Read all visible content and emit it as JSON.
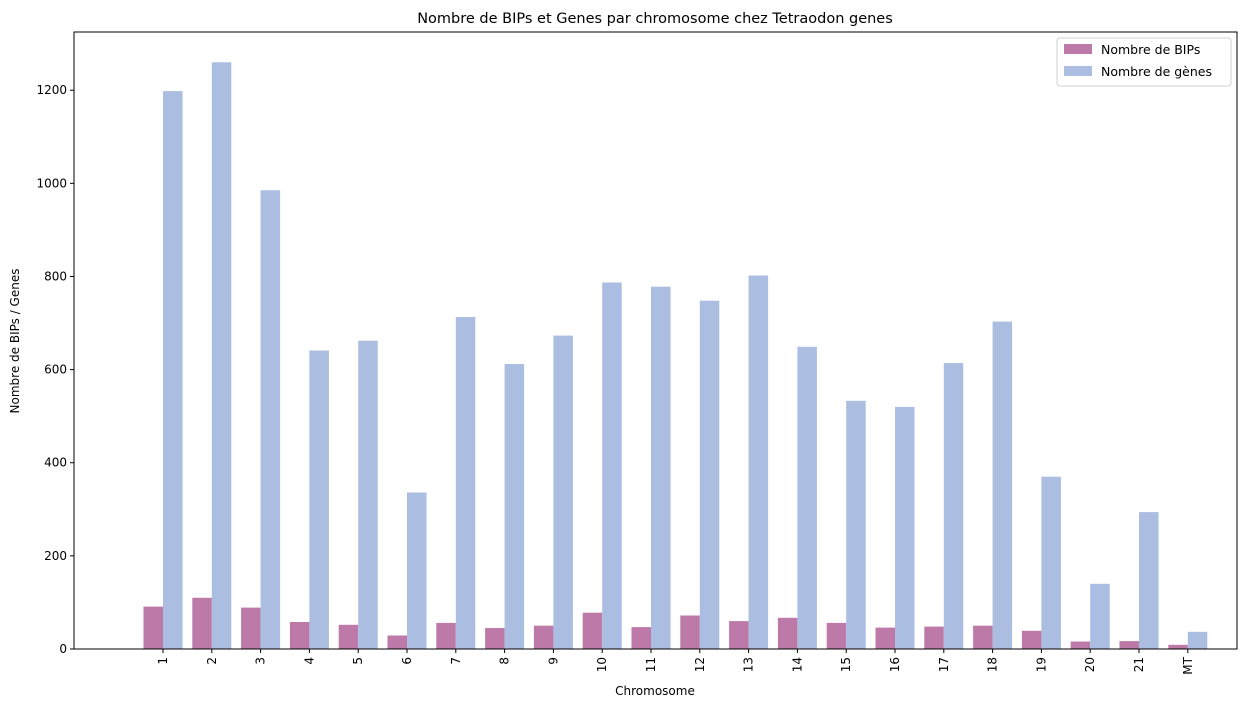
{
  "chart_data": {
    "type": "bar",
    "title": "Nombre de BIPs et Genes par chromosome chez Tetraodon genes",
    "xlabel": "Chromosome",
    "ylabel": "Nombre de BIPs / Genes",
    "categories": [
      "1",
      "2",
      "3",
      "4",
      "5",
      "6",
      "7",
      "8",
      "9",
      "10",
      "11",
      "12",
      "13",
      "14",
      "15",
      "16",
      "17",
      "18",
      "19",
      "20",
      "21",
      "MT"
    ],
    "ylim": [
      0,
      1325
    ],
    "yticks": [
      0,
      200,
      400,
      600,
      800,
      1000,
      1200
    ],
    "ytick_labels": [
      "0",
      "200",
      "400",
      "600",
      "800",
      "1000",
      "1200"
    ],
    "grid": false,
    "legend_position": "top-right",
    "series": [
      {
        "name": "Nombre de BIPs",
        "color": "#bd7aa8",
        "values": [
          91,
          110,
          89,
          58,
          52,
          29,
          56,
          45,
          50,
          78,
          47,
          72,
          60,
          67,
          56,
          46,
          48,
          50,
          39,
          16,
          17,
          9
        ]
      },
      {
        "name": "Nombre de gènes",
        "color": "#abbde0",
        "values": [
          1198,
          1260,
          985,
          641,
          662,
          336,
          713,
          612,
          673,
          787,
          778,
          748,
          802,
          649,
          533,
          520,
          614,
          703,
          370,
          140,
          294,
          37
        ]
      }
    ]
  }
}
